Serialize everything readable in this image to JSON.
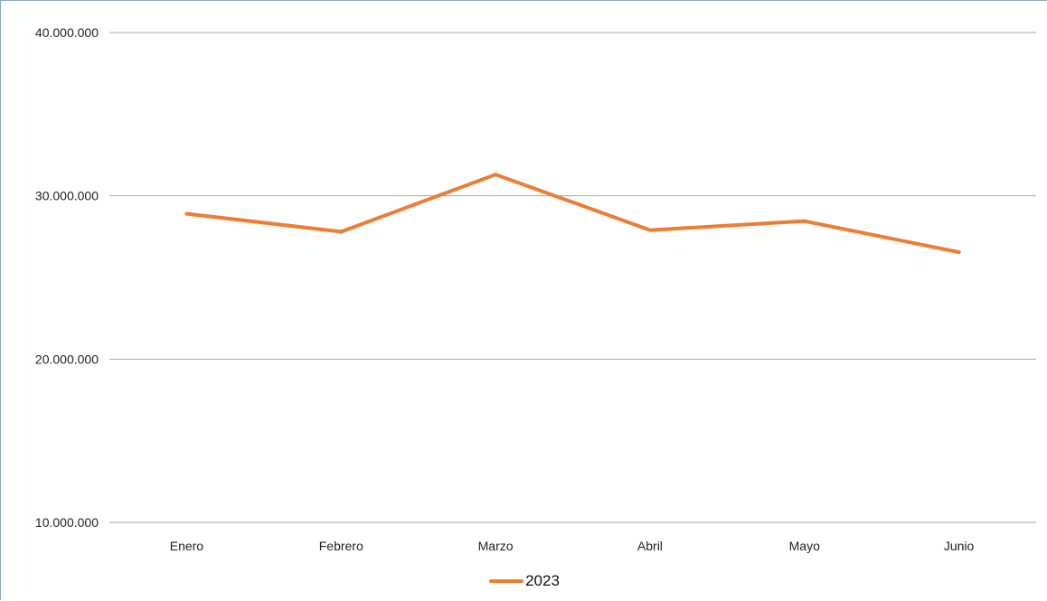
{
  "chart_data": {
    "type": "line",
    "title": "",
    "xlabel": "",
    "ylabel": "",
    "categories": [
      "Enero",
      "Febrero",
      "Marzo",
      "Abril",
      "Mayo",
      "Junio"
    ],
    "series": [
      {
        "name": "2023",
        "color": "#ed7d31",
        "values": [
          28900000,
          27800000,
          31300000,
          27900000,
          28450000,
          26550000
        ]
      }
    ],
    "ylim": [
      10000000,
      40000000
    ],
    "yticks": [
      10000000,
      20000000,
      30000000,
      40000000
    ],
    "ytick_labels": [
      "10.000.000",
      "20.000.000",
      "30.000.000",
      "40.000.000"
    ],
    "grid": true,
    "grid_color": "#a6a6a6",
    "legend_position": "bottom"
  }
}
